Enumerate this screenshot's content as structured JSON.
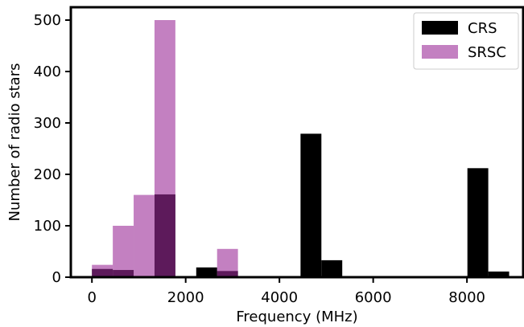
{
  "chart_data": {
    "type": "bar",
    "subtype": "overlaid-histogram",
    "title": "",
    "xlabel": "Frequency (MHz)",
    "ylabel": "Number of radio stars",
    "xlim": [
      -450,
      9200
    ],
    "ylim": [
      0,
      525
    ],
    "xticks": [
      0,
      2000,
      4000,
      6000,
      8000
    ],
    "yticks": [
      0,
      100,
      200,
      300,
      400,
      500
    ],
    "grid": false,
    "legend_position": "top-right",
    "bin_edges": [
      0,
      445,
      890,
      1335,
      1780,
      2225,
      2670,
      3115,
      3560,
      4005,
      4450,
      4895,
      5340,
      5785,
      6230,
      6675,
      7120,
      7565,
      8010,
      8455,
      8900
    ],
    "series": [
      {
        "name": "CRS",
        "color": "#000000",
        "opacity": 1.0,
        "values": [
          16,
          14,
          0,
          161,
          0,
          19,
          12,
          0,
          0,
          0,
          279,
          33,
          0,
          0,
          0,
          0,
          0,
          0,
          212,
          11
        ]
      },
      {
        "name": "SRSC",
        "color": "#9b2c98",
        "opacity": 0.6,
        "values": [
          24,
          100,
          160,
          500,
          0,
          0,
          55,
          0,
          0,
          0,
          0,
          0,
          0,
          0,
          0,
          0,
          0,
          0,
          0,
          0
        ]
      }
    ]
  }
}
